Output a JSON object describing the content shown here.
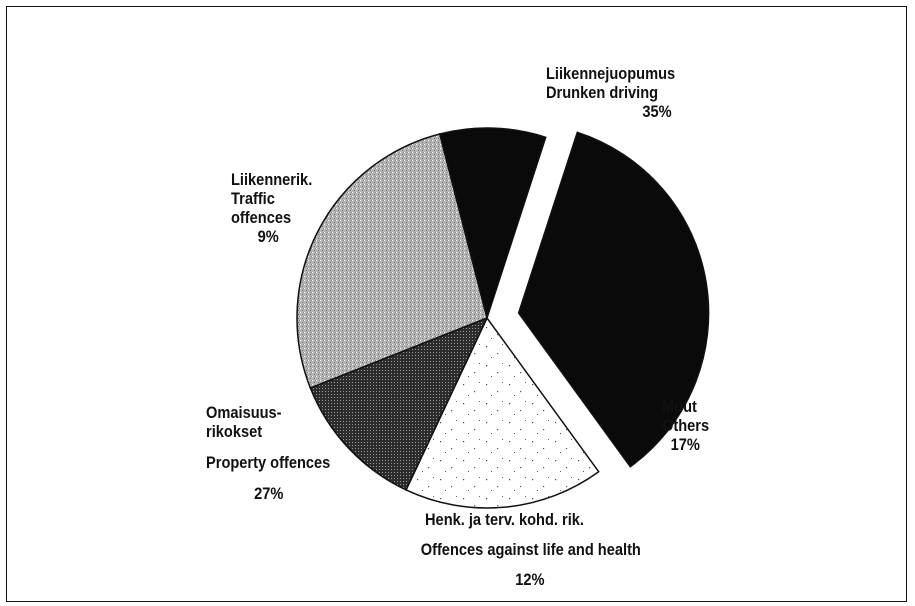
{
  "chart_data": {
    "type": "pie",
    "exploded_slice": "Liikennejuopumus / Drunken driving",
    "slices": [
      {
        "label_fi": "Liikennejuopumus",
        "label_en": "Drunken driving",
        "value": 35,
        "value_label": "35%",
        "fill": "solid-black"
      },
      {
        "label_fi": "Muut",
        "label_en": "Others",
        "value": 17,
        "value_label": "17%",
        "fill": "white-speckled"
      },
      {
        "label_fi": "Henk. ja terv. kohd. rik.",
        "label_en": "Offences against life and health",
        "value": 12,
        "value_label": "12%",
        "fill": "dark-stipple"
      },
      {
        "label_fi": "Omaisuus- rikokset",
        "label_en": "Property offences",
        "value": 27,
        "value_label": "27%",
        "fill": "grey-halftone"
      },
      {
        "label_fi": "Liikennerik.",
        "label_en": "Traffic offences",
        "value": 9,
        "value_label": "9%",
        "fill": "solid-black"
      }
    ]
  },
  "labels": {
    "drunken": {
      "fi": "Liikennejuopumus",
      "en": "Drunken driving",
      "pct": "35%"
    },
    "traffic": {
      "fi": "Liikennerik.",
      "en1": "Traffic",
      "en2": "offences",
      "pct": "9%"
    },
    "property": {
      "fi1": "Omaisuus-",
      "fi2": "rikokset",
      "en": "Property offences",
      "pct": "27%"
    },
    "life": {
      "fi": "Henk. ja terv. kohd. rik.",
      "en": "Offences against life and health",
      "pct": "12%"
    },
    "others": {
      "fi": "Muut",
      "en": "Others",
      "pct": "17%"
    }
  },
  "colors": {
    "black": "#0a0a0a",
    "grey_base": "#b8b8b8",
    "dark_stipple": "#3a3a3a",
    "white": "#ffffff"
  }
}
